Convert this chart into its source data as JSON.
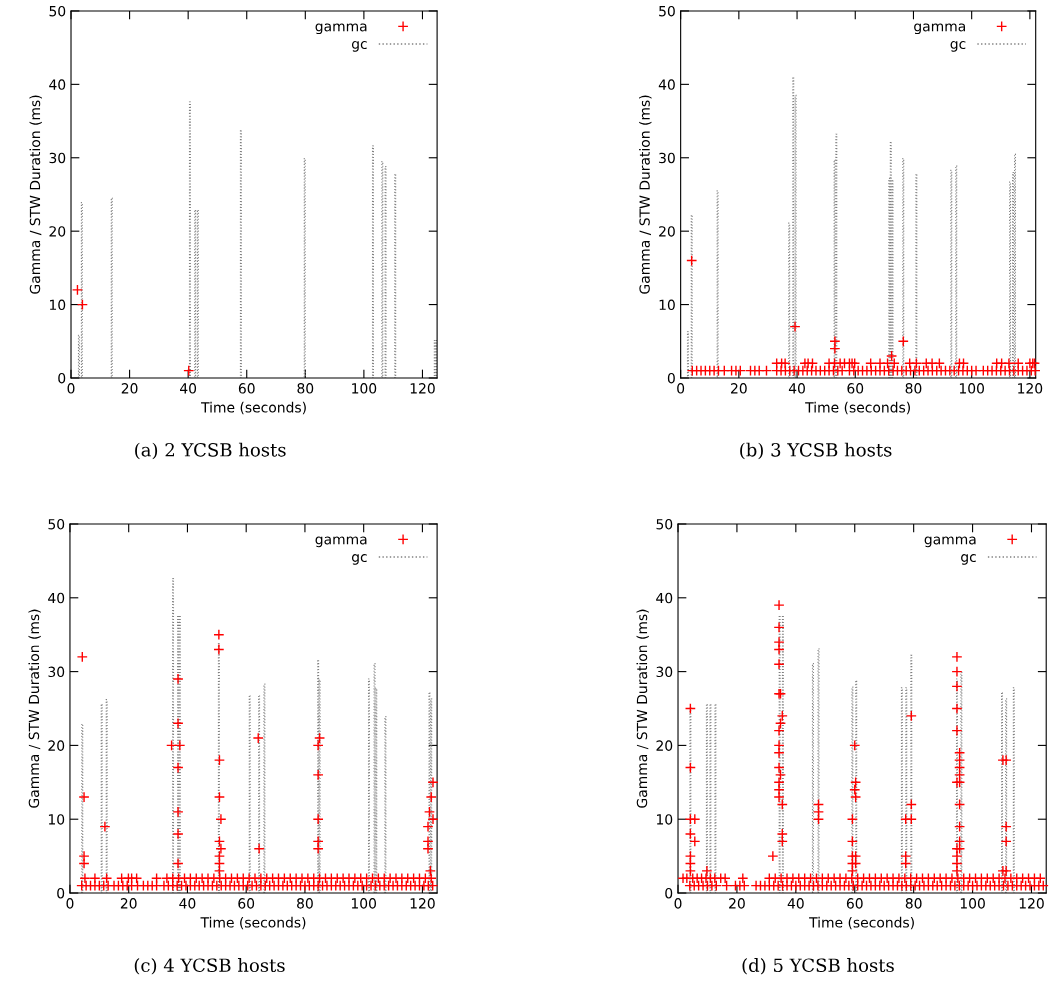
{
  "chart_data": [
    {
      "type": "scatter",
      "xlabel": "Time (seconds)",
      "ylabel": "Gamma / STW Duration (ms)",
      "xlim": [
        0,
        125
      ],
      "ylim": [
        0,
        50
      ],
      "xticks": [
        0,
        20,
        40,
        60,
        80,
        100,
        120
      ],
      "yticks": [
        0,
        10,
        20,
        30,
        40,
        50
      ],
      "legend": "top right",
      "grid": false,
      "annotations": [
        "(a) 2 YCSB hosts"
      ],
      "series": [
        {
          "name": "gamma",
          "type": "scatter",
          "marker": "cross",
          "color": "#ff0000",
          "x": [
            2.2,
            3.9,
            40.2
          ],
          "values": [
            12,
            10,
            1
          ]
        },
        {
          "name": "gc",
          "type": "bar",
          "line_style": "dotted",
          "color": "#808080",
          "x": [
            2.7,
            3.7,
            13.9,
            40.6,
            42.4,
            43.3,
            58.0,
            79.8,
            103.1,
            106.3,
            107.4,
            110.7,
            124.2,
            124.8
          ],
          "values": [
            5.8,
            23.9,
            24.5,
            37.6,
            22.9,
            22.9,
            33.8,
            29.9,
            31.6,
            29.5,
            28.8,
            27.8,
            5.1,
            5.1
          ]
        }
      ]
    },
    {
      "type": "scatter",
      "xlabel": "Time (seconds)",
      "ylabel": "Gamma / STW Duration (ms)",
      "xlim": [
        0,
        122
      ],
      "ylim": [
        0,
        50
      ],
      "xticks": [
        0,
        20,
        40,
        60,
        80,
        100,
        120
      ],
      "yticks": [
        0,
        10,
        20,
        30,
        40,
        50
      ],
      "legend": "top right",
      "grid": false,
      "annotations": [
        "(b) 3 YCSB hosts"
      ],
      "series": [
        {
          "name": "gamma",
          "type": "scatter",
          "marker": "cross",
          "color": "#ff0000",
          "x": [
            3.8,
            39.3,
            53,
            53,
            72.5,
            76.5,
            33,
            34.7,
            35.9,
            42.7,
            43.8,
            45.3,
            51,
            52.9,
            54.8,
            56.3,
            58,
            58.9,
            59.8,
            65.3,
            68.5,
            71.1,
            73.4,
            78.7,
            81,
            84.4,
            86.4,
            88.9,
            95.8,
            97.2,
            108.6,
            110.3,
            112.8,
            116,
            120,
            121,
            121.6,
            4,
            5.5,
            7,
            8.5,
            10,
            11.5,
            13,
            15,
            17.5,
            19,
            20.5,
            24,
            25.5,
            27,
            29.5,
            33,
            34.5,
            36,
            37.5,
            39,
            40.5,
            42,
            43.5,
            45,
            46.5,
            48,
            49.5,
            51,
            52.5,
            54,
            55.5,
            58,
            59.5,
            61,
            62.5,
            64,
            65.5,
            67,
            68.5,
            70,
            71.5,
            73,
            74.5,
            76,
            77.5,
            79,
            80.5,
            82,
            83.5,
            85,
            86.5,
            88,
            89.5,
            91,
            92.5,
            94,
            95.5,
            97,
            98.5,
            100,
            101.5,
            104,
            105.5,
            107,
            108.5,
            110,
            111.5,
            113,
            114.5,
            116,
            117.5,
            119,
            120.5,
            121.8
          ],
          "values": [
            16,
            7,
            5,
            4,
            3,
            5,
            2,
            2,
            2,
            2,
            2,
            2,
            2,
            2,
            2,
            2,
            2,
            2,
            2,
            2,
            2,
            2,
            2,
            2,
            2,
            2,
            2,
            2,
            2,
            2,
            2,
            2,
            2,
            2,
            2,
            2,
            2,
            1,
            1,
            1,
            1,
            1,
            1,
            1,
            1,
            1,
            1,
            1,
            1,
            1,
            1,
            1,
            1,
            1,
            1,
            1,
            1,
            1,
            1,
            1,
            1,
            1,
            1,
            1,
            1,
            1,
            1,
            1,
            1,
            1,
            1,
            1,
            1,
            1,
            1,
            1,
            1,
            1,
            1,
            1,
            1,
            1,
            1,
            1,
            1,
            1,
            1,
            1,
            1,
            1,
            1,
            1,
            1,
            1,
            1,
            1,
            1,
            1,
            1,
            1,
            1,
            1,
            1,
            1,
            1,
            1,
            1,
            1,
            1,
            1,
            1
          ]
        },
        {
          "name": "gc",
          "type": "bar",
          "line_style": "dotted",
          "color": "#808080",
          "x": [
            2.5,
            3.8,
            12.7,
            37.3,
            38.7,
            39.5,
            52.9,
            53.5,
            71.7,
            72.2,
            72.8,
            76.5,
            81,
            93,
            94.7,
            113.2,
            114.2,
            114.9
          ],
          "values": [
            6.3,
            22.2,
            25.5,
            21.1,
            41.0,
            38.5,
            29.7,
            33.2,
            27.2,
            32.2,
            27,
            29.9,
            27.8,
            28.3,
            28.9,
            26.7,
            28,
            30.5
          ]
        }
      ]
    },
    {
      "type": "scatter",
      "xlabel": "Time (seconds)",
      "ylabel": "Gamma / STW Duration (ms)",
      "xlim": [
        0,
        125
      ],
      "ylim": [
        0,
        50
      ],
      "xticks": [
        0,
        20,
        40,
        60,
        80,
        100,
        120
      ],
      "yticks": [
        0,
        10,
        20,
        30,
        40,
        50
      ],
      "legend": "top right",
      "grid": false,
      "annotations": [
        "(c) 4 YCSB hosts"
      ],
      "series": [
        {
          "name": "gamma",
          "type": "scatter",
          "marker": "cross",
          "color": "#ff0000",
          "x": [
            4.2,
            4.8,
            4.8,
            4.8,
            11.9,
            34.6,
            36.8,
            36.8,
            37.4,
            36.8,
            36.8,
            36.8,
            36.8,
            50.7,
            50.7,
            50.9,
            50.9,
            51.4,
            50.9,
            51.4,
            50.9,
            50.9,
            50.9,
            64.1,
            64.4,
            84.5,
            84.5,
            84.5,
            84.5,
            84.5,
            85,
            121.9,
            121.9,
            121.9,
            122.4,
            123,
            123.6,
            123.6,
            122.7,
            5.1,
            8.5,
            12.5,
            17.6,
            19.9,
            21,
            22.7,
            29.5,
            33,
            35,
            37,
            39,
            41,
            43,
            45,
            47,
            49,
            51,
            53,
            55,
            57,
            59,
            61,
            63,
            65,
            67,
            69,
            71,
            73,
            75,
            77,
            79,
            81,
            83,
            85,
            87,
            89,
            91,
            93,
            95,
            97,
            99,
            101,
            103,
            105,
            107,
            109,
            111,
            113,
            115,
            117,
            119,
            121,
            123,
            4,
            5.5,
            7,
            8.5,
            10,
            11.5,
            13,
            15,
            16.5,
            18,
            19.5,
            21,
            23,
            25,
            26.5,
            28,
            29.5,
            32,
            33.5,
            35,
            36.5,
            38,
            39.5,
            41,
            42.5,
            44,
            45.5,
            47,
            48.5,
            50,
            51.5,
            53,
            54.5,
            56,
            57.5,
            59,
            60.5,
            62,
            63.5,
            65,
            66.5,
            68,
            69.5,
            71,
            72.5,
            74,
            75.5,
            77,
            78.5,
            80,
            81.5,
            83,
            84.5,
            86,
            87.5,
            89,
            90.5,
            92,
            93.5,
            95,
            96.5,
            98,
            99.5,
            101,
            102.5,
            104,
            105.5,
            107,
            108.5,
            110,
            111.5,
            113,
            114.5,
            116,
            117.5,
            119,
            120.5,
            122,
            123.5
          ],
          "values": [
            32,
            13,
            5,
            4,
            9,
            20,
            29,
            23,
            20,
            17,
            11,
            8,
            4,
            35,
            33,
            18,
            13,
            10,
            7,
            6,
            5,
            4,
            3,
            21,
            6,
            20,
            16,
            10,
            7,
            6,
            21,
            9,
            7,
            6,
            11,
            13,
            15,
            10,
            3,
            2,
            2,
            2,
            2,
            2,
            2,
            2,
            2,
            2,
            2,
            2,
            2,
            2,
            2,
            2,
            2,
            2,
            2,
            2,
            2,
            2,
            2,
            2,
            2,
            2,
            2,
            2,
            2,
            2,
            2,
            2,
            2,
            2,
            2,
            2,
            2,
            2,
            2,
            2,
            2,
            2,
            2,
            2,
            2,
            2,
            2,
            2,
            2,
            2,
            2,
            2,
            2,
            2,
            2,
            1,
            1,
            1,
            1,
            1,
            1,
            1,
            1,
            1,
            1,
            1,
            1,
            1,
            1,
            1,
            1,
            1,
            1,
            1,
            1,
            1,
            1,
            1,
            1,
            1,
            1,
            1,
            1,
            1,
            1,
            1,
            1,
            1,
            1,
            1,
            1,
            1,
            1,
            1,
            1,
            1,
            1,
            1,
            1,
            1,
            1,
            1,
            1,
            1,
            1,
            1,
            1,
            1,
            1,
            1,
            1,
            1,
            1,
            1,
            1,
            1,
            1,
            1,
            1,
            1,
            1,
            1,
            1,
            1,
            1,
            1,
            1,
            1,
            1,
            1,
            1,
            1,
            1,
            1
          ]
        },
        {
          "name": "gc",
          "type": "bar",
          "line_style": "dotted",
          "color": "#808080",
          "x": [
            4.2,
            10.8,
            12.5,
            35.1,
            36.8,
            37.4,
            50.7,
            61.2,
            64.4,
            66.2,
            84.5,
            85,
            101.8,
            103.7,
            104.3,
            107.4,
            122.4,
            123
          ],
          "values": [
            22.9,
            25.6,
            26.2,
            42.6,
            37.6,
            37.6,
            33.8,
            26.8,
            26.8,
            28.3,
            31.6,
            28.9,
            29,
            31.1,
            27.7,
            23.9,
            27.2,
            26.3
          ]
        }
      ]
    },
    {
      "type": "scatter",
      "xlabel": "Time (seconds)",
      "ylabel": "Gamma / STW Duration (ms)",
      "xlim": [
        0,
        125
      ],
      "ylim": [
        0,
        50
      ],
      "xticks": [
        0,
        20,
        40,
        60,
        80,
        100,
        120
      ],
      "yticks": [
        0,
        10,
        20,
        30,
        40,
        50
      ],
      "legend": "top right",
      "grid": false,
      "annotations": [
        "(d) 5 YCSB hosts"
      ],
      "series": [
        {
          "name": "gamma",
          "type": "scatter",
          "marker": "cross",
          "color": "#ff0000",
          "x": [
            4.2,
            4.2,
            4.2,
            4.2,
            4.2,
            4.2,
            4.2,
            5.7,
            5.7,
            9.8,
            32.2,
            34.3,
            34.3,
            34.3,
            34.3,
            34.3,
            34.3,
            34.3,
            34.3,
            34.3,
            34.3,
            34.3,
            34.3,
            34.3,
            34.8,
            34.8,
            34.8,
            35.4,
            35.4,
            35.4,
            35.4,
            47.7,
            47.7,
            47.7,
            59.2,
            59.2,
            59.2,
            59.2,
            59.2,
            60,
            60,
            60.3,
            60.3,
            60.3,
            60.3,
            77.3,
            77.3,
            77.3,
            79.2,
            79.2,
            79.2,
            94.7,
            94.7,
            94.7,
            94.7,
            94.7,
            94.7,
            94.7,
            94.7,
            94.7,
            94.7,
            95.6,
            95.6,
            95.6,
            95.6,
            95.6,
            95.6,
            95.6,
            95.6,
            95.6,
            110.3,
            110.3,
            111.4,
            111.4,
            111.4,
            111.4,
            1.7,
            3,
            5,
            6.5,
            8,
            9.5,
            11,
            12.5,
            14.5,
            16,
            22,
            31,
            33,
            35,
            37,
            39,
            41,
            43,
            45,
            47,
            49,
            51,
            53,
            55,
            57,
            59,
            61,
            63,
            65,
            67,
            69,
            71,
            73,
            75,
            77,
            79,
            81,
            83,
            85,
            87,
            89,
            91,
            93,
            95,
            97,
            99,
            101,
            103,
            105,
            107,
            109,
            111,
            113,
            115,
            117,
            119,
            121,
            123,
            4,
            5.5,
            7,
            8.5,
            10,
            11.5,
            13,
            16.5,
            19.5,
            21,
            22.5,
            26.5,
            28,
            29.5,
            31,
            32.5,
            34,
            35.5,
            37,
            38.5,
            40,
            41.5,
            43,
            44.5,
            46,
            47.5,
            49,
            50.5,
            52,
            53.5,
            55,
            56.5,
            58,
            59.5,
            61,
            62.5,
            64,
            65.5,
            67,
            68.5,
            70,
            71.5,
            73,
            74.5,
            76,
            77.5,
            79,
            80.5,
            82,
            83.5,
            85,
            86.5,
            88,
            89.5,
            91,
            92.5,
            94,
            95.5,
            97,
            98.5,
            100,
            101.5,
            103,
            104.5,
            106,
            107.5,
            109,
            110.5,
            112,
            113.5,
            115,
            116.5,
            118,
            119.5,
            121,
            122.5,
            124
          ],
          "values": [
            25,
            17,
            10,
            8,
            5,
            4,
            3,
            10,
            7,
            3,
            5,
            39,
            36,
            34,
            33,
            31,
            27,
            22,
            20,
            19,
            17,
            15,
            14,
            13,
            27,
            23,
            16,
            24,
            12,
            8,
            7,
            12,
            11,
            10,
            10,
            7,
            5,
            4,
            3,
            20,
            14,
            15,
            13,
            5,
            4,
            10,
            5,
            4,
            24,
            12,
            10,
            32,
            30,
            28,
            25,
            22,
            15,
            6,
            5,
            4,
            3,
            19,
            18,
            17,
            16,
            15,
            12,
            9,
            7,
            6,
            18,
            3,
            18,
            9,
            7,
            3,
            2,
            2,
            2,
            2,
            2,
            2,
            2,
            2,
            2,
            2,
            2,
            2,
            2,
            2,
            2,
            2,
            2,
            2,
            2,
            2,
            2,
            2,
            2,
            2,
            2,
            2,
            2,
            2,
            2,
            2,
            2,
            2,
            2,
            2,
            2,
            2,
            2,
            2,
            2,
            2,
            2,
            2,
            2,
            2,
            2,
            2,
            2,
            2,
            2,
            2,
            2,
            2,
            2,
            2,
            2,
            2,
            2,
            2,
            1,
            1,
            1,
            1,
            1,
            1,
            1,
            1,
            1,
            1,
            1,
            1,
            1,
            1,
            1,
            1,
            1,
            1,
            1,
            1,
            1,
            1,
            1,
            1,
            1,
            1,
            1,
            1,
            1,
            1,
            1,
            1,
            1,
            1,
            1,
            1,
            1,
            1,
            1,
            1,
            1,
            1,
            1,
            1,
            1,
            1,
            1,
            1,
            1,
            1,
            1,
            1,
            1,
            1,
            1,
            1,
            1,
            1,
            1,
            1,
            1,
            1,
            1,
            1,
            1,
            1,
            1,
            1,
            1,
            1,
            1,
            1,
            1,
            1,
            1,
            1,
            1
          ]
        },
        {
          "name": "gc",
          "type": "bar",
          "line_style": "dotted",
          "color": "#808080",
          "x": [
            4.2,
            9.8,
            11,
            12.7,
            34.5,
            35.6,
            45.8,
            47.7,
            59.2,
            60.5,
            76,
            77.5,
            79.2,
            94.7,
            96.2,
            110,
            111.4,
            114
          ],
          "values": [
            25.2,
            25.6,
            25.6,
            25.6,
            37.6,
            37.6,
            31.1,
            33.1,
            27.9,
            28.8,
            27.8,
            27.8,
            32.2,
            29,
            29.9,
            27.2,
            26.3,
            27.8
          ]
        }
      ]
    }
  ]
}
